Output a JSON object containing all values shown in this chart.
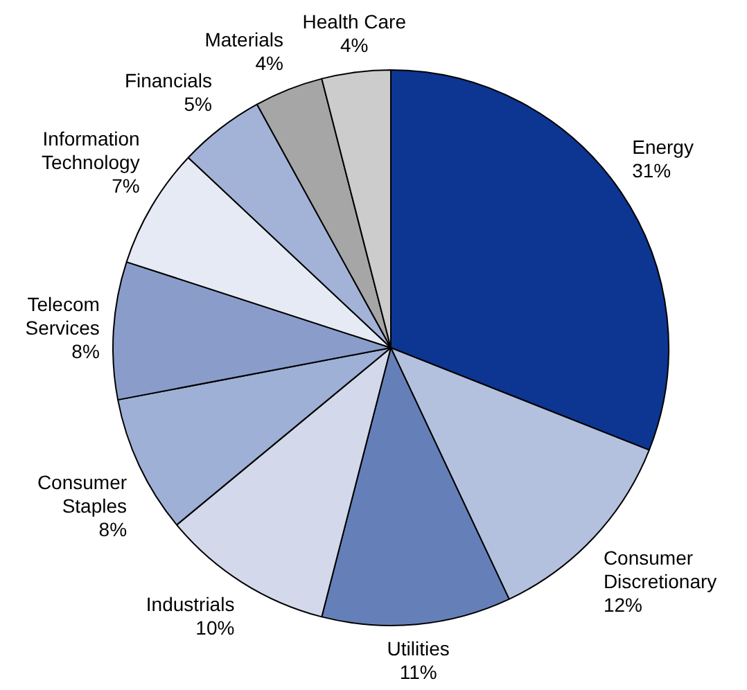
{
  "chart_data": {
    "type": "pie",
    "categories": [
      "Energy",
      "Consumer Discretionary",
      "Utilities",
      "Industrials",
      "Consumer Staples",
      "Telecom Services",
      "Information Technology",
      "Financials",
      "Materials",
      "Health Care"
    ],
    "values": [
      31,
      12,
      11,
      10,
      8,
      8,
      7,
      5,
      4,
      4
    ],
    "value_labels": [
      "31%",
      "12%",
      "11%",
      "10%",
      "8%",
      "8%",
      "7%",
      "5%",
      "4%",
      "4%"
    ],
    "colors": [
      "#0d3592",
      "#b4c1de",
      "#6580b9",
      "#d3d9ea",
      "#9fb0d6",
      "#8a9dca",
      "#e6eaf4",
      "#a3b3d8",
      "#a6a6a6",
      "#cccccc"
    ],
    "legend": false
  }
}
